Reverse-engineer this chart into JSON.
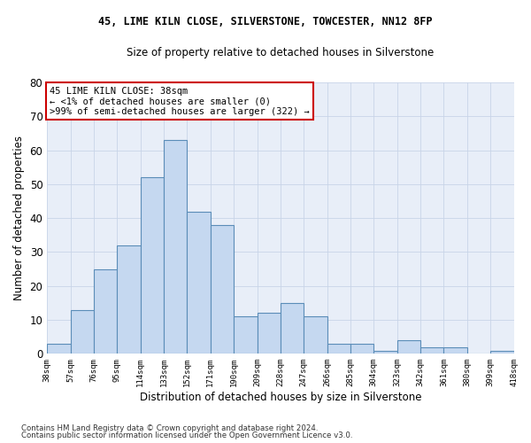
{
  "title1": "45, LIME KILN CLOSE, SILVERSTONE, TOWCESTER, NN12 8FP",
  "title2": "Size of property relative to detached houses in Silverstone",
  "xlabel": "Distribution of detached houses by size in Silverstone",
  "ylabel": "Number of detached properties",
  "bar_values": [
    3,
    13,
    25,
    32,
    52,
    63,
    42,
    38,
    11,
    12,
    15,
    11,
    3,
    3,
    1,
    4,
    2,
    2,
    0,
    1
  ],
  "bar_labels": [
    "38sqm",
    "57sqm",
    "76sqm",
    "95sqm",
    "114sqm",
    "133sqm",
    "152sqm",
    "171sqm",
    "190sqm",
    "209sqm",
    "228sqm",
    "247sqm",
    "266sqm",
    "285sqm",
    "304sqm",
    "323sqm",
    "342sqm",
    "361sqm",
    "380sqm",
    "399sqm",
    "418sqm"
  ],
  "bar_color": "#c5d8f0",
  "bar_edge_color": "#5b8db8",
  "annotation_box_text": "45 LIME KILN CLOSE: 38sqm\n← <1% of detached houses are smaller (0)\n>99% of semi-detached houses are larger (322) →",
  "annotation_box_color": "#cc0000",
  "ylim": [
    0,
    80
  ],
  "yticks": [
    0,
    10,
    20,
    30,
    40,
    50,
    60,
    70,
    80
  ],
  "grid_color": "#c8d4e8",
  "bg_color": "#e8eef8",
  "footer1": "Contains HM Land Registry data © Crown copyright and database right 2024.",
  "footer2": "Contains public sector information licensed under the Open Government Licence v3.0."
}
